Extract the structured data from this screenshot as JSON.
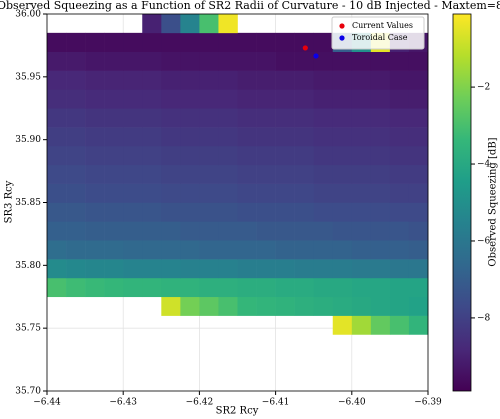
{
  "chart_data": {
    "type": "heatmap",
    "title": "Observed Squeezing as a Function of SR2 Radii of Curvature - 10 dB Injected - Maxtem=8",
    "x_label": "SR2 Rcy",
    "y_label": "SR3 Rcy",
    "colorbar_label": "Observed Squeezing [dB]",
    "xlim": [
      -6.44,
      -6.39
    ],
    "xticks": [
      {
        "value": -6.44,
        "label": "−6.44"
      },
      {
        "value": -6.43,
        "label": "−6.43"
      },
      {
        "value": -6.42,
        "label": "−6.42"
      },
      {
        "value": -6.41,
        "label": "−6.41"
      },
      {
        "value": -6.4,
        "label": "−6.40"
      },
      {
        "value": -6.39,
        "label": "−6.39"
      }
    ],
    "ylim": [
      35.7,
      36.0
    ],
    "yticks": [
      {
        "value": 35.7,
        "label": "35.70"
      },
      {
        "value": 35.75,
        "label": "35.75"
      },
      {
        "value": 35.8,
        "label": "35.80"
      },
      {
        "value": 35.85,
        "label": "35.85"
      },
      {
        "value": 35.9,
        "label": "35.90"
      },
      {
        "value": 35.95,
        "label": "35.95"
      },
      {
        "value": 36.0,
        "label": "36.00"
      }
    ],
    "clim": [
      -9.9,
      -0.1
    ],
    "cticks": [
      {
        "value": -8,
        "label": "−8"
      },
      {
        "value": -6,
        "label": "−6"
      },
      {
        "value": -4,
        "label": "−4"
      },
      {
        "value": -2,
        "label": "−2"
      }
    ],
    "colormap": [
      "#440154",
      "#482878",
      "#3e4989",
      "#31688e",
      "#26828e",
      "#1f9e89",
      "#35b779",
      "#6ece58",
      "#b5de2b",
      "#fde725"
    ],
    "grid": true,
    "legend": "upper right",
    "x": [
      -6.43875,
      -6.43625,
      -6.43375,
      -6.43125,
      -6.42875,
      -6.42625,
      -6.42375,
      -6.42125,
      -6.41875,
      -6.41625,
      -6.41375,
      -6.41125,
      -6.40875,
      -6.40625,
      -6.40375,
      -6.40125,
      -6.39875,
      -6.39625,
      -6.39375,
      -6.39125
    ],
    "y": [
      35.7075,
      35.7225,
      35.7375,
      35.7525,
      35.7675,
      35.7825,
      35.7975,
      35.8125,
      35.8275,
      35.8425,
      35.8575,
      35.8725,
      35.8875,
      35.9025,
      35.9175,
      35.9325,
      35.9475,
      35.9625,
      35.9775,
      35.9925
    ],
    "z": [
      [
        null,
        null,
        null,
        null,
        null,
        null,
        null,
        null,
        null,
        null,
        null,
        null,
        null,
        null,
        null,
        null,
        null,
        null,
        null,
        null
      ],
      [
        null,
        null,
        null,
        null,
        null,
        null,
        null,
        null,
        null,
        null,
        null,
        null,
        null,
        null,
        null,
        null,
        null,
        null,
        null,
        null
      ],
      [
        null,
        null,
        null,
        null,
        null,
        null,
        null,
        null,
        null,
        null,
        null,
        null,
        null,
        null,
        null,
        null,
        null,
        null,
        null,
        null
      ],
      [
        null,
        null,
        null,
        null,
        null,
        null,
        null,
        null,
        null,
        null,
        null,
        null,
        null,
        null,
        null,
        -0.5,
        -1.5,
        -2.5,
        -3,
        -3.5
      ],
      [
        null,
        null,
        null,
        null,
        null,
        null,
        -0.8,
        -2.2,
        -2.6,
        -3,
        -3.4,
        -3.5,
        -3.6,
        -3.7,
        -3.8,
        -3.9,
        -4,
        -4.1,
        -4.2,
        -4.3
      ],
      [
        -3,
        -3.2,
        -3.3,
        -3.4,
        -3.5,
        -3.5,
        -3.6,
        -3.6,
        -3.7,
        -3.7,
        -3.8,
        -3.8,
        -3.9,
        -3.9,
        -4,
        -4,
        -4.1,
        -4.1,
        -4.2,
        -4.2
      ],
      [
        -5.2,
        -5.3,
        -5.4,
        -5.4,
        -5.5,
        -5.5,
        -5.5,
        -5.6,
        -5.6,
        -5.6,
        -5.7,
        -5.7,
        -5.7,
        -5.8,
        -5.8,
        -5.8,
        -5.9,
        -5.9,
        -6,
        -6
      ],
      [
        -6.4,
        -6.5,
        -6.5,
        -6.5,
        -6.6,
        -6.6,
        -6.6,
        -6.6,
        -6.7,
        -6.7,
        -6.7,
        -6.7,
        -6.8,
        -6.8,
        -6.8,
        -6.8,
        -6.9,
        -6.9,
        -6.9,
        -7
      ],
      [
        -6.9,
        -6.9,
        -7,
        -7,
        -7,
        -7,
        -7,
        -7.1,
        -7.1,
        -7.1,
        -7.1,
        -7.2,
        -7.2,
        -7.2,
        -7.2,
        -7.3,
        -7.3,
        -7.3,
        -7.3,
        -7.4
      ],
      [
        -7.2,
        -7.2,
        -7.3,
        -7.3,
        -7.3,
        -7.3,
        -7.4,
        -7.4,
        -7.4,
        -7.4,
        -7.5,
        -7.5,
        -7.5,
        -7.5,
        -7.6,
        -7.6,
        -7.6,
        -7.6,
        -7.7,
        -7.7
      ],
      [
        -7.5,
        -7.5,
        -7.6,
        -7.6,
        -7.6,
        -7.6,
        -7.7,
        -7.7,
        -7.7,
        -7.7,
        -7.8,
        -7.8,
        -7.8,
        -7.8,
        -7.9,
        -7.9,
        -7.9,
        -7.9,
        -8,
        -8
      ],
      [
        -7.7,
        -7.7,
        -7.8,
        -7.8,
        -7.8,
        -7.8,
        -7.9,
        -7.9,
        -7.9,
        -7.9,
        -8,
        -8,
        -8,
        -8,
        -8.1,
        -8.1,
        -8.1,
        -8.1,
        -8.2,
        -8.2
      ],
      [
        -7.9,
        -7.9,
        -8,
        -8,
        -8,
        -8,
        -8.1,
        -8.1,
        -8.1,
        -8.1,
        -8.2,
        -8.2,
        -8.2,
        -8.2,
        -8.3,
        -8.3,
        -8.3,
        -8.3,
        -8.4,
        -8.4
      ],
      [
        -8.1,
        -8.1,
        -8.2,
        -8.2,
        -8.2,
        -8.2,
        -8.3,
        -8.3,
        -8.3,
        -8.3,
        -8.4,
        -8.4,
        -8.4,
        -8.4,
        -8.5,
        -8.5,
        -8.5,
        -8.5,
        -8.6,
        -8.6
      ],
      [
        -8.3,
        -8.3,
        -8.4,
        -8.4,
        -8.4,
        -8.4,
        -8.5,
        -8.5,
        -8.5,
        -8.5,
        -8.6,
        -8.6,
        -8.6,
        -8.6,
        -8.7,
        -8.7,
        -8.7,
        -8.7,
        -8.8,
        -8.8
      ],
      [
        -8.6,
        -8.6,
        -8.7,
        -8.7,
        -8.7,
        -8.7,
        -8.8,
        -8.8,
        -8.8,
        -8.8,
        -8.9,
        -8.9,
        -8.9,
        -8.9,
        -9,
        -9,
        -9,
        -9,
        -9.1,
        -9.1
      ],
      [
        -8.8,
        -8.8,
        -8.9,
        -8.9,
        -8.9,
        -8.9,
        -9,
        -9,
        -9,
        -9,
        -9.1,
        -9.1,
        -9.1,
        -9.1,
        -9.2,
        -9.2,
        -9.2,
        -9.2,
        -9.3,
        -9.3
      ],
      [
        -9.2,
        -9.2,
        -9.3,
        -9.3,
        -9.3,
        -9.3,
        -9.4,
        -9.4,
        -9.4,
        -9.4,
        -9.4,
        -9.4,
        -9.5,
        -9.5,
        -9.5,
        -9.5,
        -9.5,
        -9.5,
        -9.5,
        -9.5
      ],
      [
        -9.6,
        -9.6,
        -9.6,
        -9.6,
        -9.6,
        -9.6,
        -9.6,
        -9.6,
        -9.6,
        -9.6,
        -9.6,
        -9.6,
        -9.6,
        -9.6,
        -9.6,
        -7,
        -5,
        -0.5,
        -9,
        -9.3
      ],
      [
        null,
        null,
        null,
        null,
        null,
        -9,
        -7.5,
        -5.5,
        -3,
        -0.3,
        null,
        null,
        null,
        null,
        null,
        null,
        null,
        null,
        null,
        null
      ]
    ],
    "series": [
      {
        "name": "Current Values",
        "color": "#e8000b",
        "x": [
          -6.4061
        ],
        "y": [
          35.973
        ]
      },
      {
        "name": "Toroidal Case",
        "color": "#0b00e8",
        "x": [
          -6.4047
        ],
        "y": [
          35.9666
        ]
      }
    ]
  }
}
